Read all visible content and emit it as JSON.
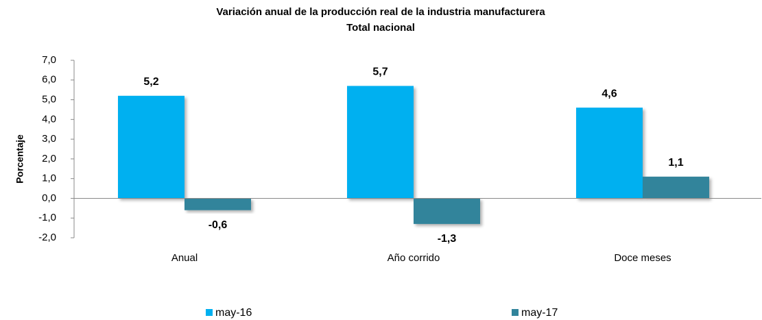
{
  "chart_data": {
    "type": "bar",
    "title": "Variación anual de la producción real de la industria manufacturera",
    "subtitle": "Total nacional",
    "y_label": "Porcentaje",
    "categories": [
      "Anual",
      "Año corrido",
      "Doce meses"
    ],
    "series": [
      {
        "name": "may-16",
        "color": "#00b0f0",
        "values": [
          5.2,
          5.7,
          4.6
        ],
        "value_labels": [
          "5,2",
          "5,7",
          "4,6"
        ]
      },
      {
        "name": "may-17",
        "color": "#31849b",
        "values": [
          -0.6,
          -1.3,
          1.1
        ],
        "value_labels": [
          "-0,6",
          "-1,3",
          "1,1"
        ]
      }
    ],
    "ylim": [
      -2,
      7
    ],
    "yticks": [
      {
        "value": -2,
        "label": "-2,0"
      },
      {
        "value": -1,
        "label": "-1,0"
      },
      {
        "value": 0,
        "label": "0,0"
      },
      {
        "value": 1,
        "label": "1,0"
      },
      {
        "value": 2,
        "label": "2,0"
      },
      {
        "value": 3,
        "label": "3,0"
      },
      {
        "value": 4,
        "label": "4,0"
      },
      {
        "value": 5,
        "label": "5,0"
      },
      {
        "value": 6,
        "label": "6,0"
      },
      {
        "value": 7,
        "label": "7,0"
      }
    ],
    "grid": false,
    "legend": "bottom"
  }
}
